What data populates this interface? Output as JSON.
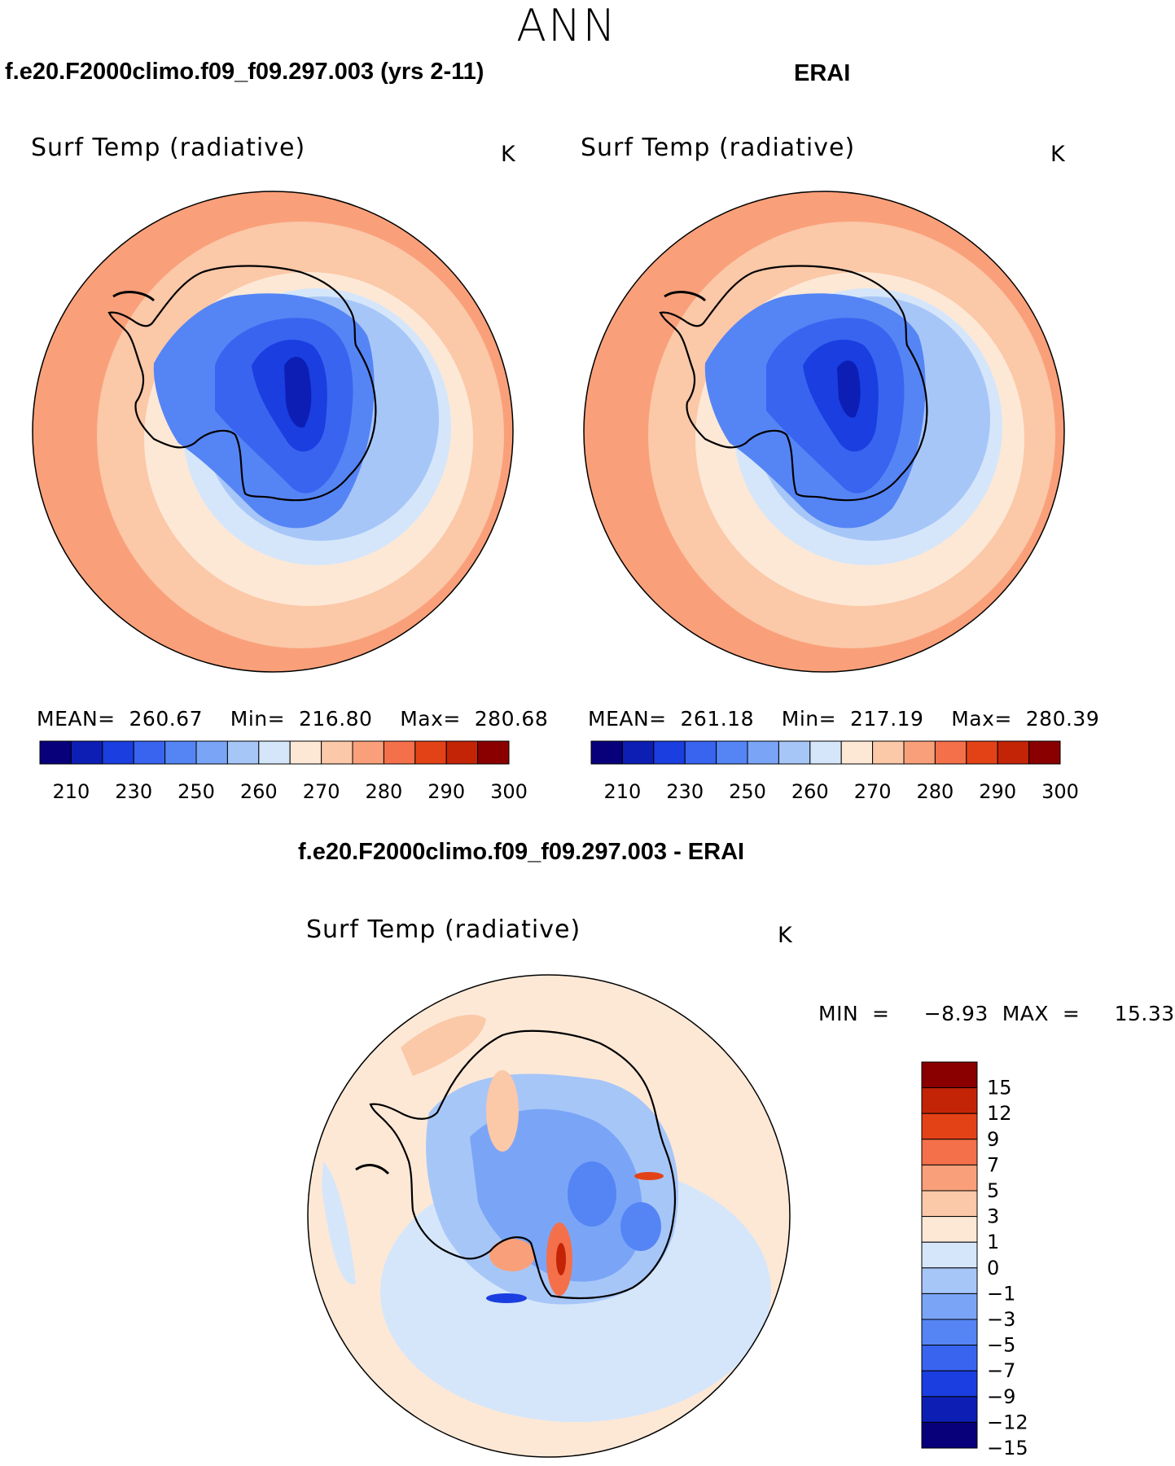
{
  "season": "ANN",
  "panels": [
    {
      "case_title": "f.e20.F2000climo.f09_f09.297.003 (yrs 2-11)",
      "plot_title": "Surf Temp (radiative)",
      "units": "K",
      "stats_text": "MEAN=  260.67    Min=  216.80    Max=  280.68"
    },
    {
      "case_title": "ERAI",
      "plot_title": "Surf Temp (radiative)",
      "units": "K",
      "stats_text": "MEAN=  261.18    Min=  217.19    Max=  280.39"
    }
  ],
  "diff_panel": {
    "case_title": "f.e20.F2000climo.f09_f09.297.003 - ERAI",
    "plot_title": "Surf Temp (radiative)",
    "units": "K",
    "minmax_text": "MIN  =     −8.93  MAX  =     15.33"
  },
  "chart_data": [
    {
      "type": "heatmap",
      "projection": "south-polar stereographic",
      "title": "Surf Temp (radiative)",
      "case": "f.e20.F2000climo.f09_f09.297.003 (yrs 2-11)",
      "units": "K",
      "mean": 260.67,
      "min": 216.8,
      "max": 280.68,
      "colorbar": {
        "orientation": "horizontal",
        "tick_labels": [
          "210",
          "230",
          "250",
          "260",
          "270",
          "280",
          "290",
          "300"
        ],
        "colors": [
          "#08007a",
          "#0d1eb4",
          "#1a3ee0",
          "#3864f0",
          "#5585f5",
          "#7aa5f7",
          "#a7c6f8",
          "#d5e6fa",
          "#fde8d6",
          "#fbc8a8",
          "#f9a07a",
          "#f4704a",
          "#e34216",
          "#c42406",
          "#8a0000"
        ]
      }
    },
    {
      "type": "heatmap",
      "projection": "south-polar stereographic",
      "title": "Surf Temp (radiative)",
      "case": "ERAI",
      "units": "K",
      "mean": 261.18,
      "min": 217.19,
      "max": 280.39,
      "colorbar": {
        "orientation": "horizontal",
        "tick_labels": [
          "210",
          "230",
          "250",
          "260",
          "270",
          "280",
          "290",
          "300"
        ],
        "colors": [
          "#08007a",
          "#0d1eb4",
          "#1a3ee0",
          "#3864f0",
          "#5585f5",
          "#7aa5f7",
          "#a7c6f8",
          "#d5e6fa",
          "#fde8d6",
          "#fbc8a8",
          "#f9a07a",
          "#f4704a",
          "#e34216",
          "#c42406",
          "#8a0000"
        ]
      }
    },
    {
      "type": "heatmap",
      "projection": "south-polar stereographic",
      "title": "Surf Temp (radiative)",
      "case": "f.e20.F2000climo.f09_f09.297.003 - ERAI",
      "units": "K",
      "min": -8.93,
      "max": 15.33,
      "colorbar": {
        "orientation": "vertical",
        "tick_labels": [
          "15",
          "12",
          "9",
          "7",
          "5",
          "3",
          "1",
          "0",
          "−1",
          "−3",
          "−5",
          "−7",
          "−9",
          "−12",
          "−15"
        ],
        "colors": [
          "#8a0000",
          "#c42406",
          "#e34216",
          "#f4704a",
          "#f9a07a",
          "#fbc8a8",
          "#fde8d6",
          "#d5e6fa",
          "#a7c6f8",
          "#7aa5f7",
          "#5585f5",
          "#3864f0",
          "#1a3ee0",
          "#0d1eb4",
          "#08007a"
        ]
      }
    }
  ]
}
